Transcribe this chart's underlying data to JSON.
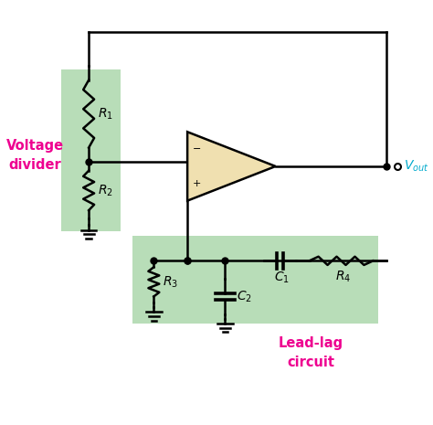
{
  "bg_color": "#ffffff",
  "green_bg": "#b8ddb8",
  "op_amp_fill": "#f0e0b0",
  "magenta_color": "#ee0090",
  "cyan_color": "#00aacc",
  "wire_color": "#000000",
  "voltage_divider_label": "Voltage\ndivider",
  "lead_lag_label": "Lead-lag\ncircuit",
  "vout_label": "$V_{out}$",
  "R1_label": "$R_1$",
  "R2_label": "$R_2$",
  "R3_label": "$R_3$",
  "R4_label": "$R_4$",
  "C1_label": "$C_1$",
  "C2_label": "$C_2$",
  "minus_label": "−",
  "plus_label": "+"
}
